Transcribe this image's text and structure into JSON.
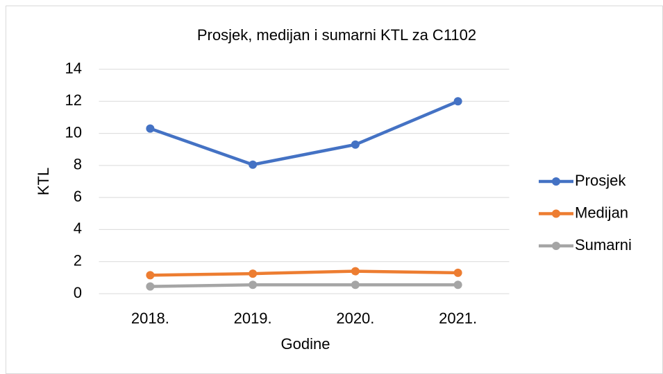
{
  "chart_data": {
    "type": "line",
    "title": "Prosjek, medijan i sumarni KTL za C1102",
    "x_label": "Godine",
    "y_label": "KTL",
    "categories": [
      "2018.",
      "2019.",
      "2020.",
      "2021."
    ],
    "series": [
      {
        "name": "Prosjek",
        "color": "#4472c4",
        "values": [
          10.3,
          8.05,
          9.3,
          12.0
        ]
      },
      {
        "name": "Medijan",
        "color": "#ed7d31",
        "values": [
          1.15,
          1.25,
          1.4,
          1.3
        ]
      },
      {
        "name": "Sumarni",
        "color": "#a5a5a5",
        "values": [
          0.45,
          0.55,
          0.55,
          0.55
        ]
      }
    ],
    "ylim": [
      0,
      14
    ],
    "yticks": [
      0,
      2,
      4,
      6,
      8,
      10,
      12,
      14
    ],
    "grid": true,
    "legend": "right"
  }
}
